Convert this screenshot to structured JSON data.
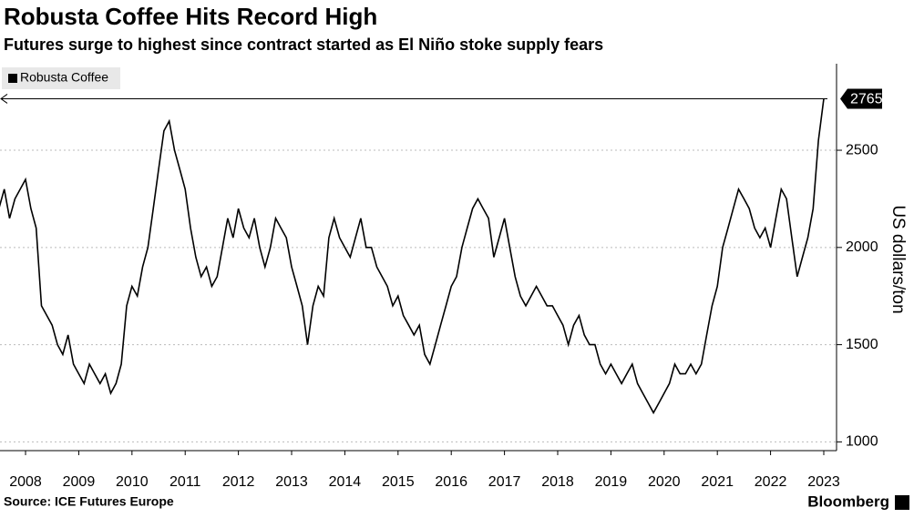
{
  "chart_data": {
    "type": "line",
    "title": "Robusta Coffee Hits Record High",
    "subtitle": "Futures surge to highest since contract started as El Niño stoke supply fears",
    "y_axis_label": "US dollars/ton",
    "source": "Source: ICE Futures Europe",
    "brand": "Bloomberg",
    "annotation": 2765,
    "x": [
      2008.0,
      2008.1,
      2008.2,
      2008.3,
      2008.4,
      2008.5,
      2008.6,
      2008.7,
      2008.8,
      2008.9,
      2009.0,
      2009.1,
      2009.2,
      2009.3,
      2009.4,
      2009.5,
      2009.6,
      2009.7,
      2009.8,
      2009.9,
      2010.0,
      2010.1,
      2010.2,
      2010.3,
      2010.4,
      2010.5,
      2010.6,
      2010.7,
      2010.8,
      2010.9,
      2011.0,
      2011.1,
      2011.2,
      2011.3,
      2011.4,
      2011.5,
      2011.6,
      2011.7,
      2011.8,
      2011.9,
      2012.0,
      2012.1,
      2012.2,
      2012.3,
      2012.4,
      2012.5,
      2012.6,
      2012.7,
      2012.8,
      2012.9,
      2013.0,
      2013.1,
      2013.2,
      2013.3,
      2013.4,
      2013.5,
      2013.6,
      2013.7,
      2013.8,
      2013.9,
      2014.0,
      2014.1,
      2014.2,
      2014.3,
      2014.4,
      2014.5,
      2014.6,
      2014.7,
      2014.8,
      2014.9,
      2015.0,
      2015.1,
      2015.2,
      2015.3,
      2015.4,
      2015.5,
      2015.6,
      2015.7,
      2015.8,
      2015.9,
      2016.0,
      2016.1,
      2016.2,
      2016.3,
      2016.4,
      2016.5,
      2016.6,
      2016.7,
      2016.8,
      2016.9,
      2017.0,
      2017.1,
      2017.2,
      2017.3,
      2017.4,
      2017.5,
      2017.6,
      2017.7,
      2017.8,
      2017.9,
      2018.0,
      2018.1,
      2018.2,
      2018.3,
      2018.4,
      2018.5,
      2018.6,
      2018.7,
      2018.8,
      2018.9,
      2019.0,
      2019.1,
      2019.2,
      2019.3,
      2019.4,
      2019.5,
      2019.6,
      2019.7,
      2019.8,
      2019.9,
      2020.0,
      2020.1,
      2020.2,
      2020.3,
      2020.4,
      2020.5,
      2020.6,
      2020.7,
      2020.8,
      2020.9,
      2021.0,
      2021.1,
      2021.2,
      2021.3,
      2021.4,
      2021.5,
      2021.6,
      2021.7,
      2021.8,
      2021.9,
      2022.0,
      2022.1,
      2022.2,
      2022.3,
      2022.4,
      2022.5,
      2022.6,
      2022.7,
      2022.8,
      2022.9,
      2023.0,
      2023.1,
      2023.2,
      2023.3,
      2023.4,
      2023.5
    ],
    "series": [
      {
        "name": "Robusta Coffee",
        "color": "#000000",
        "values": [
          2200,
          2300,
          2150,
          2250,
          2300,
          2350,
          2200,
          2100,
          1700,
          1650,
          1600,
          1500,
          1450,
          1550,
          1400,
          1350,
          1300,
          1400,
          1350,
          1300,
          1350,
          1250,
          1300,
          1400,
          1700,
          1800,
          1750,
          1900,
          2000,
          2200,
          2400,
          2600,
          2650,
          2500,
          2400,
          2300,
          2100,
          1950,
          1850,
          1900,
          1800,
          1850,
          2000,
          2150,
          2050,
          2200,
          2100,
          2050,
          2150,
          2000,
          1900,
          2000,
          2150,
          2100,
          2050,
          1900,
          1800,
          1700,
          1500,
          1700,
          1800,
          1750,
          2050,
          2150,
          2050,
          2000,
          1950,
          2050,
          2150,
          2000,
          2000,
          1900,
          1850,
          1800,
          1700,
          1750,
          1650,
          1600,
          1550,
          1600,
          1450,
          1400,
          1500,
          1600,
          1700,
          1800,
          1850,
          2000,
          2100,
          2200,
          2250,
          2200,
          2150,
          1950,
          2050,
          2150,
          2000,
          1850,
          1750,
          1700,
          1750,
          1800,
          1750,
          1700,
          1700,
          1650,
          1600,
          1500,
          1600,
          1650,
          1550,
          1500,
          1500,
          1400,
          1350,
          1400,
          1350,
          1300,
          1350,
          1400,
          1300,
          1250,
          1200,
          1150,
          1200,
          1250,
          1300,
          1400,
          1350,
          1350,
          1400,
          1350,
          1400,
          1550,
          1700,
          1800,
          2000,
          2100,
          2200,
          2300,
          2250,
          2200,
          2100,
          2050,
          2100,
          2000,
          2150,
          2300,
          2250,
          2050,
          1850,
          1950,
          2050,
          2200,
          2550,
          2765
        ]
      }
    ],
    "xlim": [
      2008.02,
      2023.74
    ],
    "xticks": [
      {
        "value": 2008.5,
        "label": "2008"
      },
      {
        "value": 2009.5,
        "label": "2009"
      },
      {
        "value": 2010.5,
        "label": "2010"
      },
      {
        "value": 2011.5,
        "label": "2011"
      },
      {
        "value": 2012.5,
        "label": "2012"
      },
      {
        "value": 2013.5,
        "label": "2013"
      },
      {
        "value": 2014.5,
        "label": "2014"
      },
      {
        "value": 2015.5,
        "label": "2015"
      },
      {
        "value": 2016.5,
        "label": "2016"
      },
      {
        "value": 2017.5,
        "label": "2017"
      },
      {
        "value": 2018.5,
        "label": "2018"
      },
      {
        "value": 2019.5,
        "label": "2019"
      },
      {
        "value": 2020.5,
        "label": "2020"
      },
      {
        "value": 2021.5,
        "label": "2021"
      },
      {
        "value": 2022.5,
        "label": "2022"
      },
      {
        "value": 2023.5,
        "label": "2023"
      }
    ],
    "ylim": [
      955,
      2945
    ],
    "yticks": [
      1000,
      1500,
      2000,
      2500
    ],
    "grid": true,
    "legend": "top-left"
  }
}
